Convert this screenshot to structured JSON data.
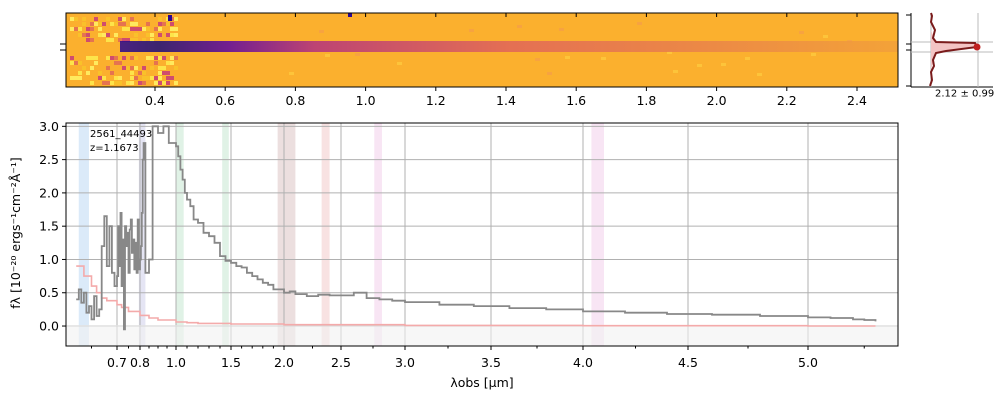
{
  "chart_data": [
    {
      "type": "heatmap",
      "name": "2D spectrum",
      "colormap": "plasma",
      "top_axis_ticks": [
        "0.4",
        "0.6",
        "0.8",
        "1.0",
        "1.2",
        "1.4",
        "1.6",
        "1.8",
        "2.0",
        "2.2",
        "2.4"
      ],
      "top_axis_values": [
        0.4,
        0.6,
        0.8,
        1.0,
        1.2,
        1.4,
        1.6,
        1.8,
        2.0,
        2.2,
        2.4
      ]
    },
    {
      "type": "line",
      "name": "spatial profile",
      "annotation": "2.12 ± 0.99"
    },
    {
      "type": "line",
      "name": "1D spectrum",
      "object_id": "2561_44493",
      "redshift_label": "z=1.1673",
      "xlabel": "λobs [μm]",
      "ylabel": "fλ [10⁻²⁰ ergs⁻¹cm⁻²Å⁻¹]",
      "x_ticks": [
        "0.7",
        "0.8",
        "1.0",
        "1.5",
        "2.0",
        "2.5",
        "3.0",
        "3.5",
        "4.0",
        "4.5",
        "5.0"
      ],
      "x_tick_values": [
        0.7,
        0.8,
        1.0,
        1.5,
        2.0,
        2.5,
        3.0,
        3.5,
        4.0,
        4.5,
        5.0
      ],
      "y_ticks": [
        "0.0",
        "0.5",
        "1.0",
        "1.5",
        "2.0",
        "2.5",
        "3.0"
      ],
      "y_tick_values": [
        0.0,
        0.5,
        1.0,
        1.5,
        2.0,
        2.5,
        3.0
      ],
      "xlim": [
        0.6,
        5.4
      ],
      "ylim": [
        -0.3,
        3.05
      ],
      "grid": true,
      "series": [
        {
          "color": "#888888",
          "x": [
            0.62,
            0.625,
            0.63,
            0.635,
            0.64,
            0.645,
            0.65,
            0.655,
            0.66,
            0.665,
            0.67,
            0.675,
            0.68,
            0.685,
            0.69,
            0.695,
            0.7,
            0.705,
            0.71,
            0.715,
            0.72,
            0.725,
            0.73,
            0.735,
            0.74,
            0.745,
            0.75,
            0.755,
            0.76,
            0.765,
            0.77,
            0.775,
            0.78,
            0.785,
            0.79,
            0.795,
            0.8,
            0.805,
            0.81,
            0.815,
            0.82,
            0.83,
            0.85,
            0.87,
            0.9,
            0.93,
            0.96,
            1.0,
            1.02,
            1.04,
            1.06,
            1.08,
            1.1,
            1.13,
            1.16,
            1.2,
            1.25,
            1.3,
            1.35,
            1.4,
            1.45,
            1.5,
            1.55,
            1.6,
            1.65,
            1.7,
            1.75,
            1.8,
            1.85,
            1.9,
            1.95,
            2.0,
            2.05,
            2.1,
            2.2,
            2.3,
            2.4,
            2.5,
            2.6,
            2.7,
            2.8,
            2.9,
            3.0,
            3.2,
            3.4,
            3.6,
            3.8,
            4.0,
            4.2,
            4.4,
            4.6,
            4.8,
            5.0,
            5.1,
            5.2,
            5.25,
            5.3
          ],
          "y": [
            0.4,
            0.55,
            0.35,
            0.5,
            0.2,
            0.3,
            0.1,
            0.45,
            0.15,
            0.25,
            1.2,
            1.65,
            0.9,
            1.5,
            0.8,
            0.6,
            0.75,
            1.5,
            0.9,
            1.7,
            0.6,
            1.3,
            -0.05,
            1.5,
            1.2,
            1.4,
            0.8,
            1.45,
            1.6,
            1.1,
            1.3,
            0.85,
            1.25,
            0.8,
            1.6,
            0.85,
            1.0,
            1.2,
            1.7,
            2.5,
            2.75,
            0.8,
            1.0,
            3.0,
            2.9,
            3.0,
            2.75,
            2.7,
            2.55,
            2.35,
            2.2,
            2.0,
            1.9,
            1.8,
            1.6,
            1.55,
            1.4,
            1.35,
            1.25,
            1.05,
            0.98,
            0.95,
            0.9,
            0.88,
            0.8,
            0.75,
            0.7,
            0.65,
            0.62,
            0.55,
            0.55,
            0.5,
            0.52,
            0.48,
            0.45,
            0.47,
            0.46,
            0.46,
            0.5,
            0.42,
            0.4,
            0.38,
            0.36,
            0.32,
            0.3,
            0.27,
            0.25,
            0.22,
            0.2,
            0.18,
            0.17,
            0.15,
            0.13,
            0.12,
            0.1,
            0.09,
            0.07
          ]
        },
        {
          "color": "#f4aaaa",
          "x": [
            0.62,
            0.635,
            0.65,
            0.66,
            0.67,
            0.68,
            0.7,
            0.72,
            0.75,
            0.8,
            0.85,
            0.9,
            1.0,
            1.1,
            1.2,
            1.5,
            2.0,
            3.0,
            4.0,
            5.0,
            5.3
          ],
          "y": [
            0.9,
            0.75,
            0.6,
            0.5,
            0.42,
            0.38,
            0.32,
            0.28,
            0.22,
            0.16,
            0.12,
            0.09,
            0.06,
            0.05,
            0.04,
            0.03,
            0.02,
            0.01,
            0.005,
            0.0,
            0.0
          ]
        }
      ],
      "bands": [
        {
          "x0": 0.625,
          "x1": 0.645,
          "color": "#cfe3f7"
        },
        {
          "x0": 0.795,
          "x1": 0.83,
          "color": "#dcdcf0"
        },
        {
          "x0": 1.0,
          "x1": 1.07,
          "color": "#d6eedd"
        },
        {
          "x0": 1.42,
          "x1": 1.48,
          "color": "#d6eedd"
        },
        {
          "x0": 1.94,
          "x1": 2.1,
          "color": "#e6d4d4"
        },
        {
          "x0": 2.33,
          "x1": 2.4,
          "color": "#f6d8d8"
        },
        {
          "x0": 2.76,
          "x1": 2.82,
          "color": "#f6dcf0"
        },
        {
          "x0": 4.04,
          "x1": 4.1,
          "color": "#f6dcf0"
        }
      ]
    }
  ]
}
